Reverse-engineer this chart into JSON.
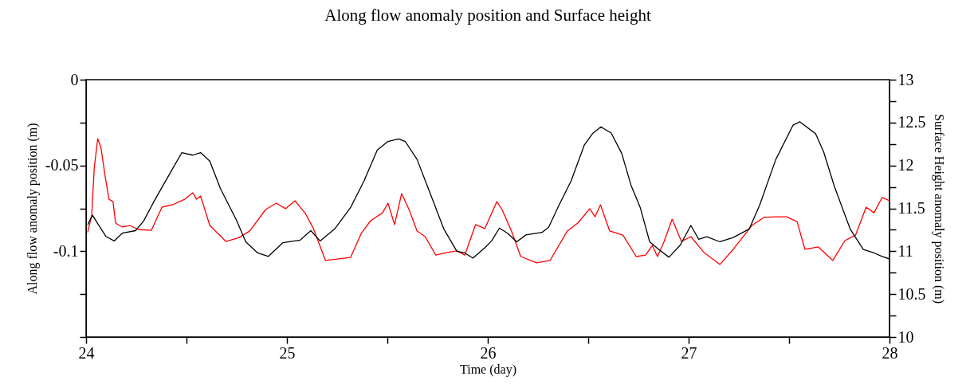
{
  "chart_data": {
    "type": "line",
    "title": "Along flow anomaly position and Surface height",
    "xlabel": "Time (day)",
    "ylabel": "Along flow anomaly position (m)",
    "y2label": "Surface Height anomaly position (m)",
    "xlim": [
      24,
      28
    ],
    "xticks": [
      24,
      {
        "value": 24.5,
        "label": null
      },
      25,
      {
        "value": 25.5,
        "label": null
      },
      26,
      {
        "value": 26.5,
        "label": null
      },
      27,
      {
        "value": 27.5,
        "label": null
      },
      28
    ],
    "ylim": [
      -0.15,
      0
    ],
    "yticks": [
      0,
      {
        "value": -0.025,
        "label": null
      },
      -0.05,
      {
        "value": -0.075,
        "label": null
      },
      -0.1,
      {
        "value": -0.125,
        "label": null
      },
      {
        "value": -0.15,
        "label": null
      }
    ],
    "y2lim": [
      10,
      13
    ],
    "y2ticks": [
      10,
      {
        "value": 10.25,
        "label": null
      },
      10.5,
      {
        "value": 10.75,
        "label": null
      },
      11,
      {
        "value": 11.25,
        "label": null
      },
      11.5,
      {
        "value": 11.75,
        "label": null
      },
      12,
      {
        "value": 12.25,
        "label": null
      },
      12.5,
      {
        "value": 12.75,
        "label": null
      },
      13
    ],
    "series": [
      {
        "color": "#ff0000",
        "x": [
          24.008,
          24.028,
          24.041,
          24.058,
          24.074,
          24.094,
          24.114,
          24.134,
          24.147,
          24.18,
          24.219,
          24.259,
          24.325,
          24.378,
          24.431,
          24.491,
          24.531,
          24.55,
          24.57,
          24.616,
          24.696,
          24.762,
          24.815,
          24.894,
          24.947,
          24.993,
          25.04,
          25.092,
          25.132,
          25.192,
          25.251,
          25.317,
          25.37,
          25.417,
          25.476,
          25.503,
          25.536,
          25.571,
          25.608,
          25.648,
          25.688,
          25.741,
          25.794,
          25.846,
          25.886,
          25.939,
          25.985,
          26.045,
          26.071,
          26.118,
          26.164,
          26.243,
          26.31,
          26.396,
          26.448,
          26.508,
          26.534,
          26.561,
          26.607,
          26.673,
          26.739,
          26.786,
          26.819,
          26.845,
          26.878,
          26.918,
          26.964,
          27.011,
          27.077,
          27.156,
          27.222,
          27.315,
          27.374,
          27.434,
          27.487,
          27.54,
          27.579,
          27.646,
          27.718,
          27.778,
          27.831,
          27.884,
          27.923,
          27.963,
          28
        ],
        "values": [
          -0.089,
          -0.079,
          -0.0511,
          -0.0344,
          -0.0395,
          -0.0557,
          -0.0697,
          -0.0711,
          -0.0836,
          -0.0859,
          -0.085,
          -0.0873,
          -0.0878,
          -0.0743,
          -0.0729,
          -0.0697,
          -0.0659,
          -0.0697,
          -0.0678,
          -0.085,
          -0.0943,
          -0.092,
          -0.0882,
          -0.0757,
          -0.072,
          -0.0752,
          -0.0706,
          -0.078,
          -0.0868,
          -0.1054,
          -0.1045,
          -0.1036,
          -0.0896,
          -0.0822,
          -0.0776,
          -0.072,
          -0.0845,
          -0.0664,
          -0.0757,
          -0.0882,
          -0.0915,
          -0.1022,
          -0.1008,
          -0.0998,
          -0.1022,
          -0.0845,
          -0.0868,
          -0.0711,
          -0.0757,
          -0.0882,
          -0.1031,
          -0.1068,
          -0.1054,
          -0.0882,
          -0.0836,
          -0.0752,
          -0.0799,
          -0.0729,
          -0.0882,
          -0.0906,
          -0.1031,
          -0.1022,
          -0.0966,
          -0.1031,
          -0.0943,
          -0.0813,
          -0.0943,
          -0.0915,
          -0.1008,
          -0.1077,
          -0.0989,
          -0.085,
          -0.0803,
          -0.0799,
          -0.0799,
          -0.0827,
          -0.0989,
          -0.0975,
          -0.1054,
          -0.0938,
          -0.0906,
          -0.0743,
          -0.0776,
          -0.0687,
          -0.0706
        ]
      },
      {
        "color": "#000000",
        "axis": "y2",
        "x": [
          24.008,
          24.032,
          24.061,
          24.1,
          24.14,
          24.18,
          24.246,
          24.286,
          24.338,
          24.418,
          24.477,
          24.531,
          24.57,
          24.616,
          24.669,
          24.749,
          24.795,
          24.854,
          24.908,
          24.98,
          25.066,
          25.119,
          25.165,
          25.238,
          25.317,
          25.384,
          25.45,
          25.503,
          25.556,
          25.589,
          25.648,
          25.714,
          25.781,
          25.846,
          25.886,
          25.926,
          25.985,
          26.019,
          26.058,
          26.098,
          26.144,
          26.19,
          26.27,
          26.303,
          26.349,
          26.415,
          26.481,
          26.521,
          26.563,
          26.614,
          26.667,
          26.713,
          26.759,
          26.806,
          26.852,
          26.902,
          26.958,
          27.011,
          27.05,
          27.09,
          27.156,
          27.222,
          27.302,
          27.354,
          27.434,
          27.52,
          27.553,
          27.632,
          27.672,
          27.725,
          27.804,
          27.87,
          27.923,
          27.963,
          28
        ],
        "values": [
          11.31,
          11.42,
          11.31,
          11.17,
          11.12,
          11.21,
          11.24,
          11.35,
          11.58,
          11.91,
          12.15,
          12.12,
          12.15,
          12.05,
          11.73,
          11.36,
          11.11,
          10.98,
          10.94,
          11.1,
          11.13,
          11.24,
          11.12,
          11.26,
          11.51,
          11.82,
          12.18,
          12.28,
          12.31,
          12.28,
          12.07,
          11.67,
          11.26,
          11.0,
          10.98,
          10.92,
          11.04,
          11.12,
          11.27,
          11.21,
          11.11,
          11.19,
          11.22,
          11.28,
          11.51,
          11.82,
          12.24,
          12.37,
          12.45,
          12.38,
          12.14,
          11.77,
          11.51,
          11.11,
          11.02,
          10.93,
          11.07,
          11.3,
          11.14,
          11.17,
          11.11,
          11.16,
          11.26,
          11.54,
          12.07,
          12.47,
          12.51,
          12.37,
          12.16,
          11.76,
          11.26,
          11.02,
          10.98,
          10.94,
          10.91
        ]
      }
    ]
  }
}
